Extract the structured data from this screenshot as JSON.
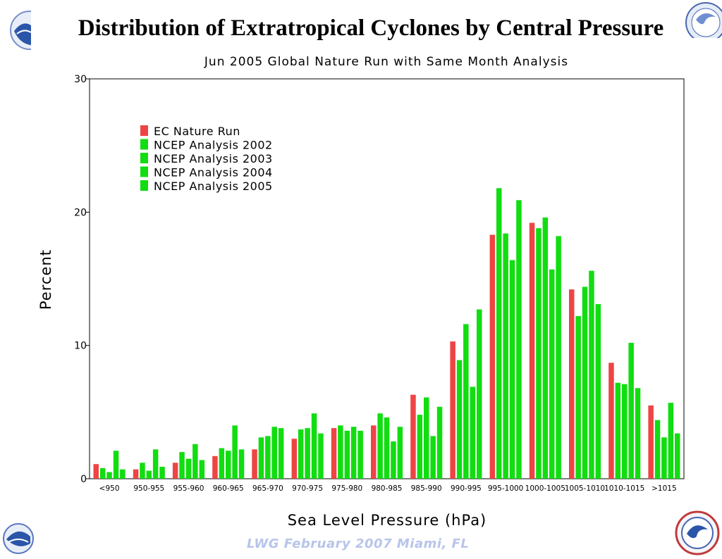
{
  "slide": {
    "title": "Distribution of Extratropical Cyclones by Central Pressure",
    "footer": "LWG  February 2007 Miami, FL"
  },
  "colors": {
    "ec": "#ee4444",
    "ncep": "#11dd11",
    "footer": "#b8c4ea",
    "logo_blue": "#2a55a8"
  },
  "icons": [
    "noaa-logo-icon",
    "nws-logo-icon"
  ],
  "chart_data": {
    "type": "bar",
    "title": "Jun 2005 Global Nature Run with Same Month Analysis",
    "xlabel": "Sea Level Pressure (hPa)",
    "ylabel": "Percent",
    "ylim": [
      0,
      30
    ],
    "yticks": [
      0,
      10,
      20,
      30
    ],
    "grid": false,
    "legend_position": "top-left",
    "categories": [
      "<950",
      "950-955",
      "955-960",
      "960-965",
      "965-970",
      "970-975",
      "975-980",
      "980-985",
      "985-990",
      "990-995",
      "995-1000",
      "1000-1005",
      "1005-1010",
      "1010-1015",
      ">1015"
    ],
    "series": [
      {
        "name": "EC Nature Run",
        "color": "#ee4444",
        "values": [
          1.1,
          0.7,
          1.2,
          1.7,
          2.2,
          3.0,
          3.8,
          4.0,
          6.3,
          10.3,
          18.3,
          19.2,
          14.2,
          8.7,
          5.5
        ]
      },
      {
        "name": "NCEP Analysis 2002",
        "color": "#11dd11",
        "values": [
          0.8,
          1.2,
          2.0,
          2.3,
          3.1,
          3.7,
          4.0,
          4.9,
          4.8,
          8.9,
          21.8,
          18.8,
          12.2,
          7.2,
          4.4
        ]
      },
      {
        "name": "NCEP Analysis 2003",
        "color": "#11dd11",
        "values": [
          0.5,
          0.6,
          1.5,
          2.1,
          3.2,
          3.8,
          3.6,
          4.6,
          6.1,
          11.6,
          18.4,
          19.6,
          14.4,
          7.1,
          3.1
        ]
      },
      {
        "name": "NCEP Analysis 2004",
        "color": "#11dd11",
        "values": [
          2.1,
          2.2,
          2.6,
          4.0,
          3.9,
          4.9,
          3.9,
          2.8,
          3.2,
          6.9,
          16.4,
          15.7,
          15.6,
          10.2,
          5.7
        ]
      },
      {
        "name": "NCEP Analysis 2005",
        "color": "#11dd11",
        "values": [
          0.7,
          0.9,
          1.4,
          2.2,
          3.8,
          3.4,
          3.6,
          3.9,
          5.4,
          12.7,
          20.9,
          18.2,
          13.1,
          6.8,
          3.4
        ]
      }
    ]
  }
}
